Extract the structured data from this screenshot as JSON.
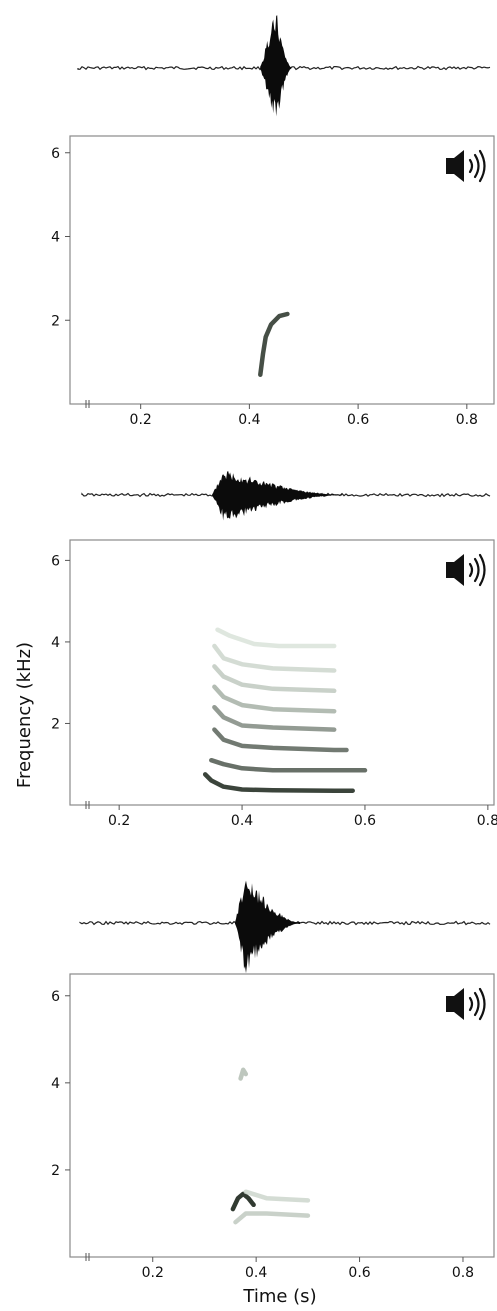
{
  "speaker_icon": "speaker-sound-icon",
  "axis_labels": {
    "ylabel": "Frequency (kHz)",
    "xlabel": "Time (s)"
  },
  "chart_data": [
    {
      "type": "spectrogram",
      "panel": 1,
      "xlabel": "",
      "ylabel": "",
      "xticks": [
        "0.2",
        "0.4",
        "0.6",
        "0.8"
      ],
      "yticks": [
        "2",
        "4",
        "6"
      ],
      "xlim": [
        0.07,
        0.85
      ],
      "ylim": [
        0,
        6.4
      ],
      "axis_break": true,
      "tracks": [
        {
          "intensity": 0.85,
          "points": [
            [
              0.42,
              0.7
            ],
            [
              0.425,
              1.2
            ],
            [
              0.43,
              1.6
            ],
            [
              0.44,
              1.9
            ],
            [
              0.455,
              2.1
            ],
            [
              0.47,
              2.15
            ]
          ]
        }
      ],
      "waveform": {
        "burst_start": 0.415,
        "burst_peak": 0.445,
        "burst_end": 0.475,
        "amplitude": 1.0
      }
    },
    {
      "type": "spectrogram",
      "panel": 2,
      "xlabel": "",
      "ylabel": "Frequency (kHz)",
      "xticks": [
        "0.2",
        "0.4",
        "0.6",
        "0.8"
      ],
      "yticks": [
        "2",
        "4",
        "6"
      ],
      "xlim": [
        0.12,
        0.81
      ],
      "ylim": [
        0,
        6.5
      ],
      "axis_break": true,
      "tracks": [
        {
          "intensity": 0.9,
          "points": [
            [
              0.34,
              0.75
            ],
            [
              0.35,
              0.6
            ],
            [
              0.37,
              0.45
            ],
            [
              0.4,
              0.38
            ],
            [
              0.45,
              0.36
            ],
            [
              0.55,
              0.35
            ],
            [
              0.58,
              0.35
            ]
          ]
        },
        {
          "intensity": 0.7,
          "points": [
            [
              0.35,
              1.1
            ],
            [
              0.37,
              1.0
            ],
            [
              0.4,
              0.9
            ],
            [
              0.45,
              0.85
            ],
            [
              0.55,
              0.85
            ],
            [
              0.6,
              0.85
            ]
          ]
        },
        {
          "intensity": 0.65,
          "points": [
            [
              0.355,
              1.85
            ],
            [
              0.37,
              1.6
            ],
            [
              0.4,
              1.45
            ],
            [
              0.45,
              1.4
            ],
            [
              0.55,
              1.35
            ],
            [
              0.57,
              1.35
            ]
          ]
        },
        {
          "intensity": 0.5,
          "points": [
            [
              0.355,
              2.4
            ],
            [
              0.37,
              2.15
            ],
            [
              0.4,
              1.95
            ],
            [
              0.45,
              1.9
            ],
            [
              0.55,
              1.85
            ]
          ]
        },
        {
          "intensity": 0.35,
          "points": [
            [
              0.355,
              2.9
            ],
            [
              0.37,
              2.65
            ],
            [
              0.4,
              2.45
            ],
            [
              0.45,
              2.35
            ],
            [
              0.55,
              2.3
            ]
          ]
        },
        {
          "intensity": 0.25,
          "points": [
            [
              0.355,
              3.4
            ],
            [
              0.37,
              3.15
            ],
            [
              0.4,
              2.95
            ],
            [
              0.45,
              2.85
            ],
            [
              0.55,
              2.8
            ]
          ]
        },
        {
          "intensity": 0.2,
          "points": [
            [
              0.355,
              3.9
            ],
            [
              0.37,
              3.6
            ],
            [
              0.4,
              3.45
            ],
            [
              0.45,
              3.35
            ],
            [
              0.55,
              3.3
            ]
          ]
        },
        {
          "intensity": 0.15,
          "points": [
            [
              0.36,
              4.3
            ],
            [
              0.38,
              4.15
            ],
            [
              0.42,
              3.95
            ],
            [
              0.46,
              3.9
            ],
            [
              0.55,
              3.9
            ]
          ]
        }
      ],
      "waveform": {
        "burst_start": 0.34,
        "burst_peak": 0.36,
        "burst_end": 0.56,
        "amplitude": 0.75
      }
    },
    {
      "type": "spectrogram",
      "panel": 3,
      "xlabel": "Time (s)",
      "ylabel": "",
      "xticks": [
        "0.2",
        "0.4",
        "0.6",
        "0.8"
      ],
      "yticks": [
        "2",
        "4",
        "6"
      ],
      "xlim": [
        0.04,
        0.86
      ],
      "ylim": [
        0,
        6.5
      ],
      "axis_break": true,
      "tracks": [
        {
          "intensity": 0.95,
          "points": [
            [
              0.355,
              1.1
            ],
            [
              0.365,
              1.35
            ],
            [
              0.375,
              1.45
            ],
            [
              0.385,
              1.35
            ],
            [
              0.395,
              1.2
            ]
          ]
        },
        {
          "intensity": 0.25,
          "points": [
            [
              0.36,
              0.8
            ],
            [
              0.38,
              1.0
            ],
            [
              0.42,
              1.0
            ],
            [
              0.5,
              0.95
            ]
          ]
        },
        {
          "intensity": 0.2,
          "points": [
            [
              0.38,
              1.5
            ],
            [
              0.42,
              1.35
            ],
            [
              0.5,
              1.3
            ]
          ]
        },
        {
          "intensity": 0.3,
          "points": [
            [
              0.37,
              4.1
            ],
            [
              0.375,
              4.3
            ],
            [
              0.38,
              4.2
            ]
          ]
        }
      ],
      "waveform": {
        "burst_start": 0.35,
        "burst_peak": 0.37,
        "burst_end": 0.48,
        "amplitude": 1.0
      }
    }
  ]
}
